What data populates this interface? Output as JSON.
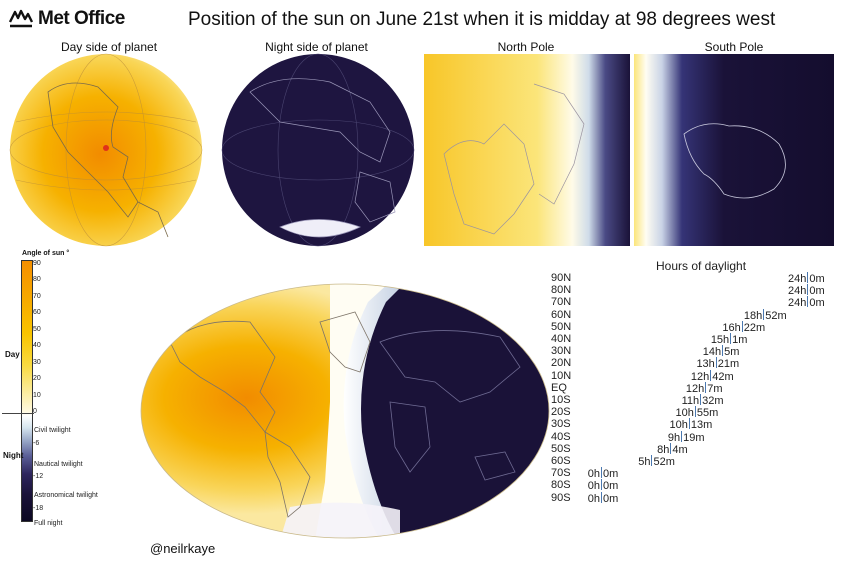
{
  "header": {
    "logo_text": "Met Office",
    "title": "Position of the sun on June 21st when it is midday at 98 degrees west"
  },
  "panels": {
    "day_side": "Day side of planet",
    "night_side": "Night side of planet",
    "north_pole": "North Pole",
    "south_pole": "South Pole"
  },
  "legend": {
    "title": "Angle of sun °",
    "ticks": [
      "90",
      "80",
      "70",
      "60",
      "50",
      "40",
      "30",
      "20",
      "10",
      "0",
      "-6",
      "-12",
      "-18"
    ],
    "day_label": "Day",
    "night_label": "Night",
    "zones": [
      "Civil twilight",
      "Nautical twilight",
      "Astronomical twilight",
      "Full night"
    ]
  },
  "daylight": {
    "title": "Hours of daylight",
    "rows": [
      {
        "lat": "90N",
        "h": "24h",
        "m": "0m",
        "hours": 24.0
      },
      {
        "lat": "80N",
        "h": "24h",
        "m": "0m",
        "hours": 24.0
      },
      {
        "lat": "70N",
        "h": "24h",
        "m": "0m",
        "hours": 24.0
      },
      {
        "lat": "60N",
        "h": "18h",
        "m": "52m",
        "hours": 18.87
      },
      {
        "lat": "50N",
        "h": "16h",
        "m": "22m",
        "hours": 16.37
      },
      {
        "lat": "40N",
        "h": "15h",
        "m": "1m",
        "hours": 15.02
      },
      {
        "lat": "30N",
        "h": "14h",
        "m": "5m",
        "hours": 14.08
      },
      {
        "lat": "20N",
        "h": "13h",
        "m": "21m",
        "hours": 13.35
      },
      {
        "lat": "10N",
        "h": "12h",
        "m": "42m",
        "hours": 12.7
      },
      {
        "lat": "EQ",
        "h": "12h",
        "m": "7m",
        "hours": 12.12
      },
      {
        "lat": "10S",
        "h": "11h",
        "m": "32m",
        "hours": 11.53
      },
      {
        "lat": "20S",
        "h": "10h",
        "m": "55m",
        "hours": 10.92
      },
      {
        "lat": "30S",
        "h": "10h",
        "m": "13m",
        "hours": 10.22
      },
      {
        "lat": "40S",
        "h": "9h",
        "m": "19m",
        "hours": 9.32
      },
      {
        "lat": "50S",
        "h": "8h",
        "m": "4m",
        "hours": 8.07
      },
      {
        "lat": "60S",
        "h": "5h",
        "m": "52m",
        "hours": 5.87
      },
      {
        "lat": "70S",
        "h": "0h",
        "m": "0m",
        "hours": 0
      },
      {
        "lat": "80S",
        "h": "0h",
        "m": "0m",
        "hours": 0
      },
      {
        "lat": "90S",
        "h": "0h",
        "m": "0m",
        "hours": 0
      }
    ]
  },
  "credit": "@neilrkaye",
  "colors": {
    "sun_high": "#f28c00",
    "sun_low": "#fbe07a",
    "twilight": "#ffffff",
    "night": "#1a1238",
    "coastline": "#8a8fa8"
  }
}
